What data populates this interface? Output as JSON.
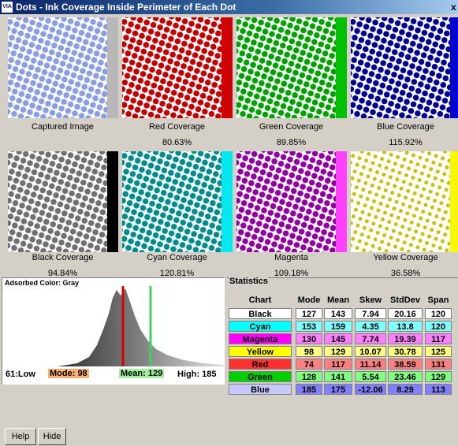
{
  "window": {
    "title": "Dots - Ink Coverage Inside Perimeter of Each Dot",
    "icon": "VIA",
    "close": "x"
  },
  "tiles": [
    {
      "label": "Captured Image",
      "coverage": null
    },
    {
      "label": "Red Coverage",
      "coverage": "80.63%"
    },
    {
      "label": "Green Coverage",
      "coverage": "89.85%"
    },
    {
      "label": "Blue Coverage",
      "coverage": "115.92%"
    },
    {
      "label": "Black Coverage",
      "coverage": "94.84%"
    },
    {
      "label": "Cyan Coverage",
      "coverage": "120.81%"
    },
    {
      "label": "Magenta",
      "coverage": "109.18%"
    },
    {
      "label": "Yellow Coverage",
      "coverage": "36.58%"
    }
  ],
  "histogram": {
    "title": "Adsorbed Color: Gray",
    "low": "61:Low",
    "mode": "Mode: 98",
    "mean": "Mean: 129",
    "high": "High: 185"
  },
  "statistics": {
    "title": "Statistics",
    "header": [
      "Chart",
      "Mode",
      "Mean",
      "Skew",
      "StdDev",
      "Span"
    ],
    "rows": [
      [
        "Black",
        127,
        143,
        7.94,
        20.16,
        120
      ],
      [
        "Cyan",
        153,
        159,
        4.35,
        13.8,
        120
      ],
      [
        "Magenta",
        130,
        145,
        7.74,
        19.39,
        117
      ],
      [
        "Yellow",
        98,
        129,
        10.07,
        30.78,
        125
      ],
      [
        "Red",
        74,
        117,
        11.14,
        38.59,
        131
      ],
      [
        "Green",
        128,
        141,
        5.54,
        23.46,
        129
      ],
      [
        "Blue",
        185,
        175,
        -12.06,
        8.29,
        113
      ]
    ]
  },
  "buttons": [
    "Help",
    "Hide"
  ]
}
